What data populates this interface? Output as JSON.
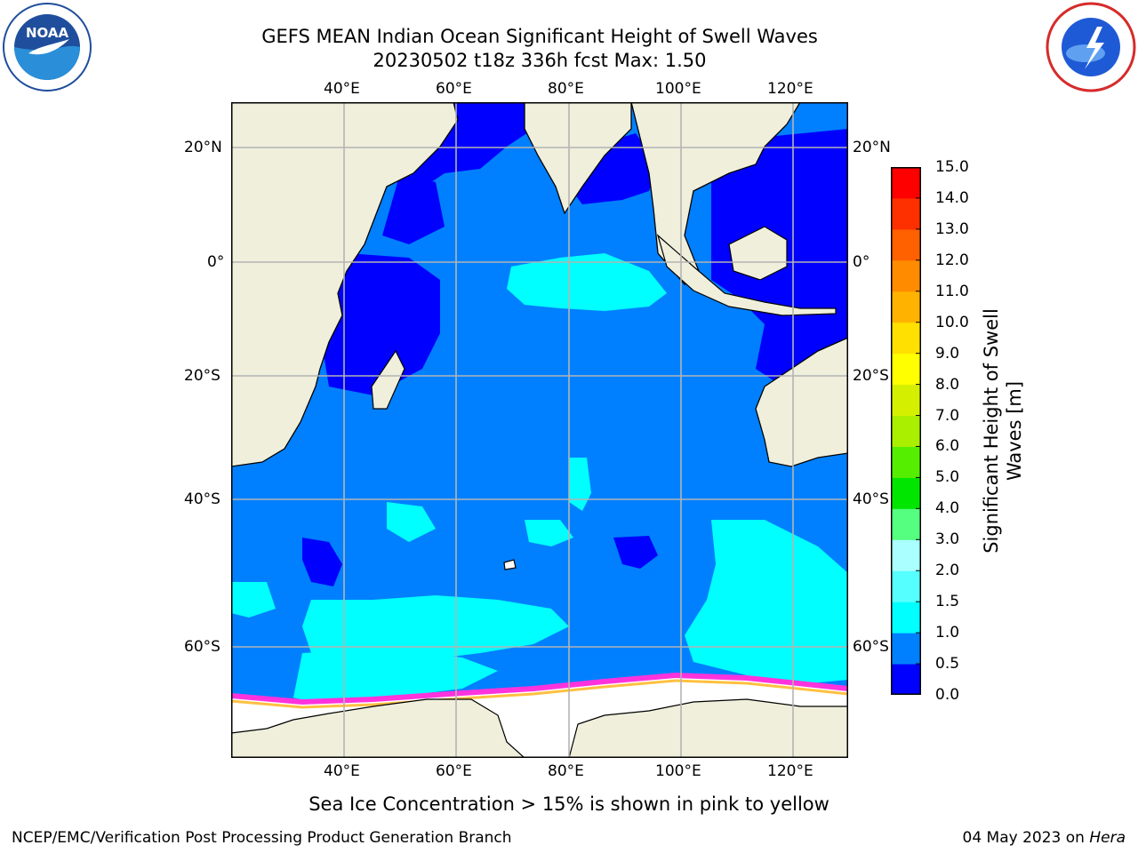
{
  "title_line1": "GEFS MEAN Indian Ocean Significant Height of Swell Waves",
  "title_line2": "20230502 t18z 336h fcst   Max: 1.50",
  "longitude_labels": [
    "40°E",
    "60°E",
    "80°E",
    "100°E",
    "120°E"
  ],
  "latitude_labels_left": [
    "20°N",
    "0°",
    "20°S",
    "40°S",
    "60°S"
  ],
  "latitude_labels_right": [
    "20°N",
    "0°",
    "20°S",
    "40°S",
    "60°S"
  ],
  "colorbar": {
    "label_line1": "Significant Height of Swell",
    "label_line2": "Waves [m]",
    "ticks": [
      "0.0",
      "0.5",
      "1.0",
      "1.5",
      "2.0",
      "3.0",
      "4.0",
      "5.0",
      "6.0",
      "7.0",
      "8.0",
      "9.0",
      "10.0",
      "11.0",
      "12.0",
      "13.0",
      "14.0",
      "15.0"
    ],
    "colors": [
      "#0000ff",
      "#0080ff",
      "#00ffff",
      "#55ffff",
      "#aaffff",
      "#55ff80",
      "#00e600",
      "#55ee00",
      "#aaee00",
      "#d4f000",
      "#ffff00",
      "#ffe000",
      "#ffb300",
      "#ff8c00",
      "#ff6000",
      "#ff3000",
      "#ff0000"
    ]
  },
  "map_colors": {
    "land": "#efefdc",
    "ocean_low": "#0000ff",
    "ocean_mid": "#0080ff",
    "ocean_high": "#00ffff",
    "sea_ice": "#ffffff",
    "ice_pink": "#ff33dd",
    "ice_yellow": "#ffc040",
    "grid": "#b4b4b4"
  },
  "sea_ice_note": "Sea Ice Concentration > 15% is shown in pink to yellow",
  "footer_left": "NCEP/EMC/Verification Post Processing Product Generation Branch",
  "footer_date": "04 May 2023 on ",
  "footer_host": "Hera"
}
